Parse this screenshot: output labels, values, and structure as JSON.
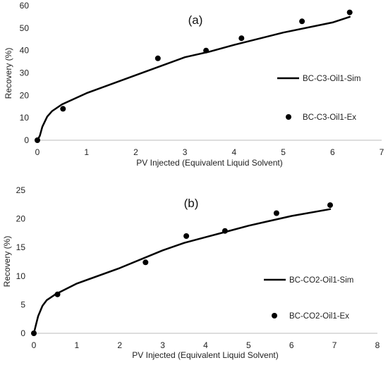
{
  "chart_data": [
    {
      "type": "line",
      "panel_label": "(a)",
      "xlabel": "PV Injected (Equivalent Liquid Solvent)",
      "ylabel": "Recovery (%)",
      "xlim": [
        0,
        7
      ],
      "ylim": [
        0,
        60
      ],
      "x_ticks": [
        "0",
        "1",
        "2",
        "3",
        "4",
        "5",
        "6",
        "7"
      ],
      "y_ticks": [
        "0",
        "10",
        "20",
        "30",
        "40",
        "50",
        "60"
      ],
      "grid": false,
      "legend_position": "right",
      "series": [
        {
          "name": "BC-C3-Oil1-Sim",
          "style": "line",
          "color": "#000000",
          "x": [
            0,
            0.05,
            0.1,
            0.2,
            0.3,
            0.5,
            1,
            2,
            2.5,
            3,
            3.5,
            4,
            5,
            6,
            6.35
          ],
          "y": [
            0,
            2,
            6,
            10.5,
            13,
            16,
            21,
            29,
            33,
            37,
            39.5,
            42.5,
            48,
            52.5,
            55
          ]
        },
        {
          "name": "BC-C3-Oil1-Ex",
          "style": "markers",
          "color": "#000000",
          "x": [
            0,
            0.52,
            2.45,
            3.43,
            4.15,
            5.38,
            6.35
          ],
          "y": [
            0,
            14,
            36.5,
            40,
            45.5,
            53,
            57
          ]
        }
      ]
    },
    {
      "type": "line",
      "panel_label": "(b)",
      "xlabel": "PV Injected (Equivalent Liquid Solvent)",
      "ylabel": "Recovery (%)",
      "xlim": [
        0,
        8
      ],
      "ylim": [
        0,
        25
      ],
      "x_ticks": [
        "0",
        "1",
        "2",
        "3",
        "4",
        "5",
        "6",
        "7",
        "8"
      ],
      "y_ticks": [
        "0",
        "5",
        "10",
        "15",
        "20",
        "25"
      ],
      "grid": false,
      "legend_position": "right",
      "series": [
        {
          "name": "BC-CO2-Oil1-Sim",
          "style": "line",
          "color": "#000000",
          "x": [
            0,
            0.05,
            0.1,
            0.2,
            0.3,
            0.5,
            1,
            2,
            3,
            3.5,
            4,
            4.5,
            5,
            6,
            6.9
          ],
          "y": [
            0,
            1.5,
            3,
            4.8,
            5.8,
            6.8,
            8.7,
            11.4,
            14.5,
            15.8,
            16.8,
            17.8,
            18.8,
            20.5,
            21.7
          ]
        },
        {
          "name": "BC-CO2-Oil1-Ex",
          "style": "markers",
          "color": "#000000",
          "x": [
            0,
            0.55,
            2.6,
            3.55,
            4.45,
            5.65,
            6.9
          ],
          "y": [
            0,
            6.8,
            12.4,
            17,
            17.9,
            21,
            22.4
          ]
        }
      ]
    }
  ]
}
